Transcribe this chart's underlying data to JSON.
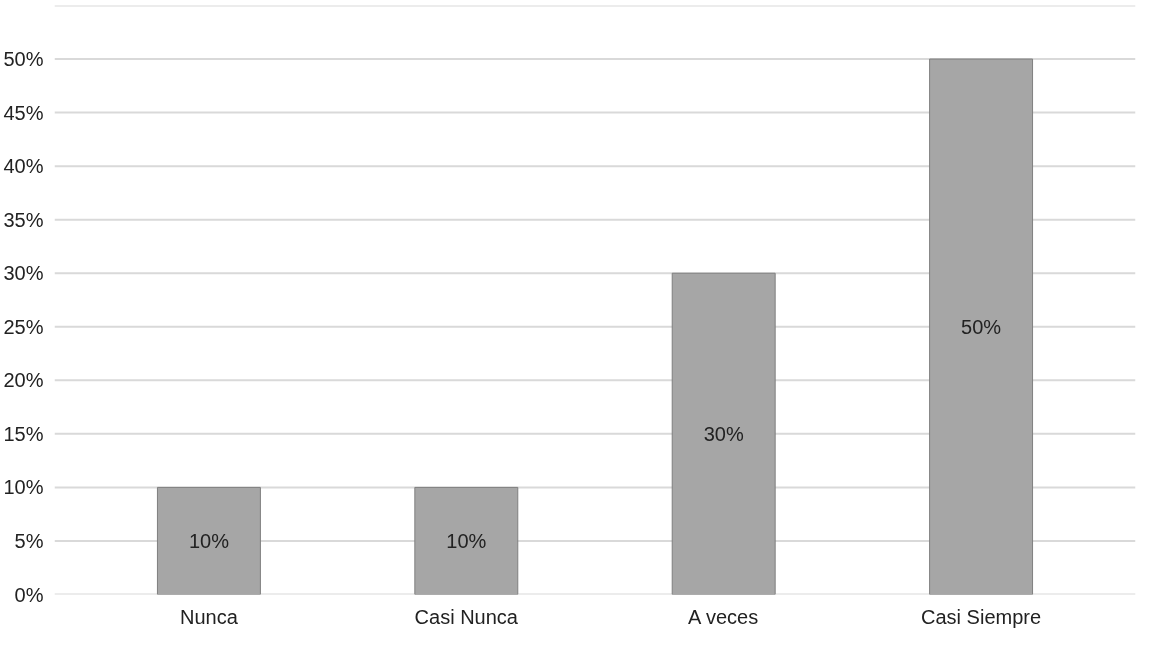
{
  "chart_data": {
    "type": "bar",
    "categories": [
      "Nunca",
      "Casi Nunca",
      "A veces",
      "Casi Siempre"
    ],
    "values": [
      10,
      10,
      30,
      50
    ],
    "color": "#a6a6a6",
    "value_labels": [
      "10%",
      "10%",
      "30%",
      "50%"
    ],
    "ylim": [
      0,
      55
    ],
    "yticks": [
      {
        "value": 0,
        "label": "0%"
      },
      {
        "value": 5,
        "label": "5%"
      },
      {
        "value": 10,
        "label": "10%"
      },
      {
        "value": 15,
        "label": "15%"
      },
      {
        "value": 20,
        "label": "20%"
      },
      {
        "value": 25,
        "label": "25%"
      },
      {
        "value": 30,
        "label": "30%"
      },
      {
        "value": 35,
        "label": "35%"
      },
      {
        "value": 40,
        "label": "40%"
      },
      {
        "value": 45,
        "label": "45%"
      },
      {
        "value": 50,
        "label": "50%"
      },
      {
        "value": 55,
        "label": null
      }
    ],
    "grid": "y"
  }
}
